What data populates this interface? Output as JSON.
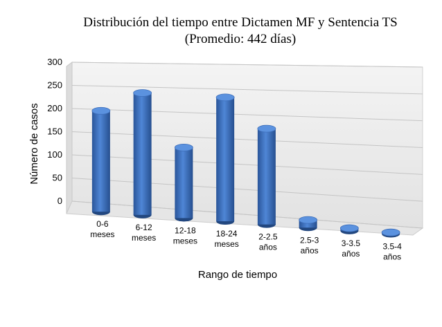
{
  "chart_data": {
    "type": "bar",
    "title": "Distribución del tiempo entre Dictamen MF y Sentencia TS",
    "subtitle": "(Promedio: 442 días)",
    "xlabel": "Rango de tiempo",
    "ylabel": "Número de casos",
    "ylim": [
      0,
      300
    ],
    "yticks": [
      "0",
      "50",
      "100",
      "150",
      "200",
      "250",
      "300"
    ],
    "grid": true,
    "categories": [
      [
        "0-6",
        "meses"
      ],
      [
        "6-12",
        "meses"
      ],
      [
        "12-18",
        "meses"
      ],
      [
        "18-24",
        "meses"
      ],
      [
        "2-2.5",
        "años"
      ],
      [
        "2.5-3",
        "años"
      ],
      [
        "3-3.5",
        "años"
      ],
      [
        "3.5-4",
        "años"
      ]
    ],
    "values": [
      215,
      255,
      145,
      250,
      190,
      15,
      5,
      3
    ],
    "bar_color": "#3b6fc2"
  }
}
